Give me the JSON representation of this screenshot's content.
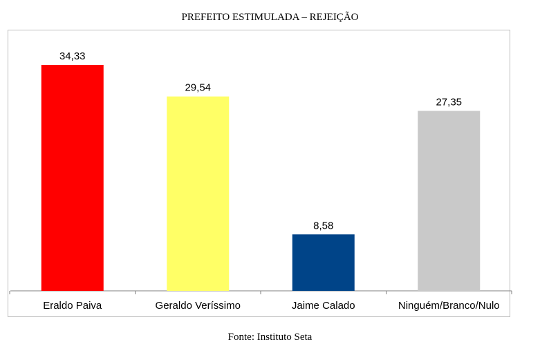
{
  "chart_data": {
    "type": "bar",
    "title": "PREFEITO ESTIMULADA – REJEIÇÃO",
    "categories": [
      "Eraldo Paiva",
      "Geraldo Veríssimo",
      "Jaime Calado",
      "Ninguém/Branco/Nulo"
    ],
    "values": [
      34.33,
      29.54,
      8.58,
      27.35
    ],
    "value_labels": [
      "34,33",
      "29,54",
      "8,58",
      "27,35"
    ],
    "colors": [
      "#ff0000",
      "#ffff66",
      "#004488",
      "#c9c9c9"
    ],
    "ylim": [
      0,
      40
    ],
    "grid": false,
    "legend": "none"
  },
  "source": "Fonte: Instituto Seta"
}
